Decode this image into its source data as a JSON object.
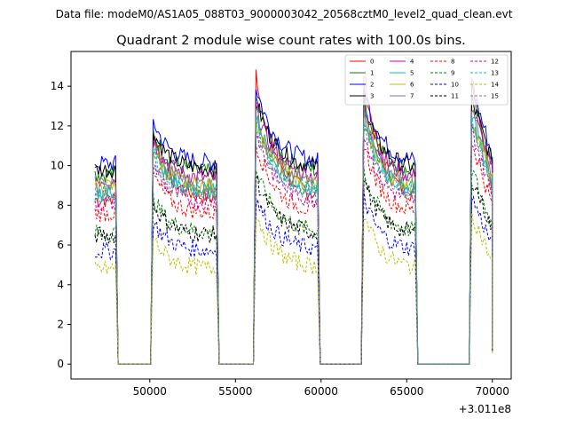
{
  "suptitle": "Data file: modeM0/AS1A05_088T03_9000003042_20568cztM0_level2_quad_clean.evt",
  "chart_data": {
    "type": "line",
    "title": "Quadrant 2 module wise count rates with 100.0s bins.",
    "xlabel": "",
    "ylabel": "",
    "x_offset_label": "+3.011e8",
    "xlim": [
      45400,
      71100
    ],
    "ylim": [
      -0.75,
      15.75
    ],
    "x_ticks": [
      50000,
      55000,
      60000,
      65000,
      70000
    ],
    "x_tick_labels": [
      "50000",
      "55000",
      "60000",
      "65000",
      "70000"
    ],
    "y_ticks": [
      0,
      2,
      4,
      6,
      8,
      10,
      12,
      14
    ],
    "y_tick_labels": [
      "0",
      "2",
      "4",
      "6",
      "8",
      "10",
      "12",
      "14"
    ],
    "legend_position": "top-right",
    "gti_segments": [
      {
        "start": 46800,
        "end": 48000
      },
      {
        "start": 50200,
        "end": 53900
      },
      {
        "start": 56200,
        "end": 59800
      },
      {
        "start": 62500,
        "end": 65500
      },
      {
        "start": 68800,
        "end": 70000
      }
    ],
    "gap_level": 0,
    "series": [
      {
        "name": "0",
        "color": "#ff0000",
        "dash": "solid",
        "level": 8.3,
        "peak": 14.7
      },
      {
        "name": "1",
        "color": "#008000",
        "dash": "solid",
        "level": 9.6,
        "peak": 13.4
      },
      {
        "name": "2",
        "color": "#0000ff",
        "dash": "solid",
        "level": 10.1,
        "peak": 14.0
      },
      {
        "name": "3",
        "color": "#000000",
        "dash": "solid",
        "level": 9.8,
        "peak": 13.3
      },
      {
        "name": "4",
        "color": "#bf00bf",
        "dash": "solid",
        "level": 9.3,
        "peak": 13.0
      },
      {
        "name": "5",
        "color": "#00bfbf",
        "dash": "solid",
        "level": 8.6,
        "peak": 12.6
      },
      {
        "name": "6",
        "color": "#bfbf00",
        "dash": "solid",
        "level": 8.9,
        "peak": 12.4
      },
      {
        "name": "7",
        "color": "#808080",
        "dash": "solid",
        "level": 9.0,
        "peak": 12.8
      },
      {
        "name": "8",
        "color": "#ff0000",
        "dash": "dashed",
        "level": 7.6,
        "peak": 11.2
      },
      {
        "name": "9",
        "color": "#008000",
        "dash": "dashed",
        "level": 6.6,
        "peak": 9.8
      },
      {
        "name": "10",
        "color": "#0000ff",
        "dash": "dashed",
        "level": 5.7,
        "peak": 8.4
      },
      {
        "name": "11",
        "color": "#000000",
        "dash": "dashed",
        "level": 6.5,
        "peak": 9.4
      },
      {
        "name": "12",
        "color": "#bf00bf",
        "dash": "dashed",
        "level": 8.1,
        "peak": 11.8
      },
      {
        "name": "13",
        "color": "#00bfbf",
        "dash": "dashed",
        "level": 8.7,
        "peak": 12.2
      },
      {
        "name": "14",
        "color": "#bfbf00",
        "dash": "dashed",
        "level": 4.8,
        "peak": 7.6
      },
      {
        "name": "15",
        "color": "#808080",
        "dash": "dashed",
        "level": 8.4,
        "peak": 12.0
      }
    ]
  }
}
